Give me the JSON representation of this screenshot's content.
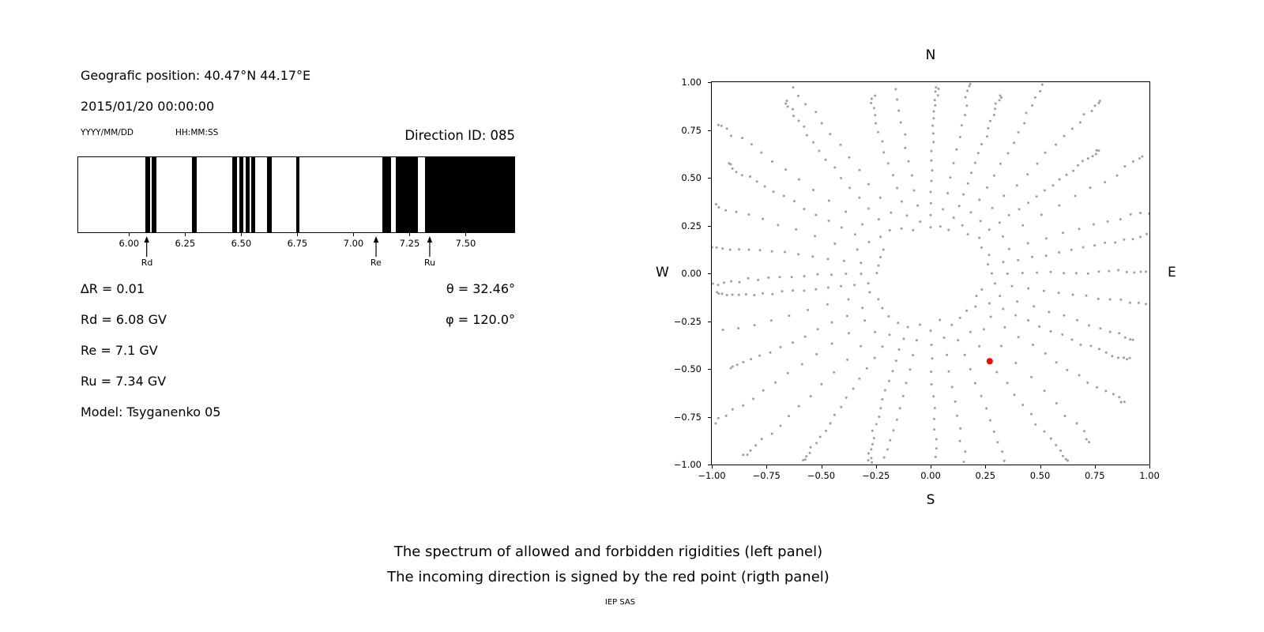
{
  "figure": {
    "background": "#ffffff",
    "caption_line1": "The spectrum of allowed and forbidden rigidities (left panel)",
    "caption_line2": "The incoming direction is signed by the red point (rigth panel)",
    "credit": "IEP SAS"
  },
  "left_panel": {
    "position": "Geografic position: 40.47°N 44.17°E",
    "datetime": "2015/01/20 00:00:00",
    "date_format_hint": "YYYY/MM/DD",
    "time_format_hint": "HH:MM:SS",
    "direction_id": "Direction ID: 085",
    "info_rows": [
      {
        "left": "∆R = 0.01",
        "right": "θ = 32.46°"
      },
      {
        "left": "Rd = 6.08 GV",
        "right": "φ = 120.0°"
      },
      {
        "left": "Re = 7.1 GV",
        "right": ""
      },
      {
        "left": "Ru = 7.34 GV",
        "right": ""
      },
      {
        "left": "Model: Tsyganenko 05",
        "right": ""
      }
    ]
  },
  "chart_data": [
    {
      "type": "bar",
      "name": "rigidity-spectrum",
      "title": "Direction ID: 085",
      "description": "Spectrum of allowed (white) and forbidden (black) rigidities in GV",
      "x_range": [
        5.77,
        7.72
      ],
      "x_ticks": [
        "6.00",
        "6.25",
        "6.50",
        "6.75",
        "7.00",
        "7.25",
        "7.50"
      ],
      "x_tick_values": [
        6.0,
        6.25,
        6.5,
        6.75,
        7.0,
        7.25,
        7.5
      ],
      "bar_color": "#000000",
      "forbidden_bands_gv": [
        [
          6.07,
          6.09
        ],
        [
          6.1,
          6.12
        ],
        [
          6.28,
          6.3
        ],
        [
          6.46,
          6.48
        ],
        [
          6.49,
          6.51
        ],
        [
          6.52,
          6.535
        ],
        [
          6.545,
          6.56
        ],
        [
          6.615,
          6.635
        ],
        [
          6.745,
          6.76
        ],
        [
          7.13,
          7.17
        ],
        [
          7.19,
          7.29
        ],
        [
          7.32,
          7.72
        ]
      ],
      "markers": [
        {
          "label": "Rd",
          "value": 6.08
        },
        {
          "label": "Re",
          "value": 7.1
        },
        {
          "label": "Ru",
          "value": 7.34
        }
      ],
      "values": {
        "delta_R_gv": 0.01,
        "Rd_gv": 6.08,
        "Re_gv": 7.1,
        "Ru_gv": 7.34,
        "theta_deg": 32.46,
        "phi_deg": 120.0,
        "model": "Tsyganenko 05",
        "direction_id": "085"
      }
    },
    {
      "type": "scatter",
      "name": "incoming-direction-map",
      "description": "Radial pattern of gray trajectory points; red point marks the incoming direction",
      "xlim": [
        -1,
        1
      ],
      "ylim": [
        -1,
        1
      ],
      "x_ticks": [
        "−1.00",
        "−0.75",
        "−0.50",
        "−0.25",
        "0.00",
        "0.25",
        "0.50",
        "0.75",
        "1.00"
      ],
      "x_tick_values": [
        -1.0,
        -0.75,
        -0.5,
        -0.25,
        0.0,
        0.25,
        0.5,
        0.75,
        1.0
      ],
      "y_ticks": [
        "1.00",
        "0.75",
        "0.50",
        "0.25",
        "0.00",
        "−0.25",
        "−0.50",
        "−0.75",
        "−1.00"
      ],
      "y_tick_values": [
        1.0,
        0.75,
        0.5,
        0.25,
        0.0,
        -0.25,
        -0.5,
        -0.75,
        -1.0
      ],
      "compass": {
        "top": "N",
        "bottom": "S",
        "left": "W",
        "right": "E"
      },
      "rays": {
        "count": 36,
        "inner_radius": 0.27,
        "outer_radius_min": 0.95,
        "outer_radius_max": 1.32,
        "points_min": 12,
        "points_max": 19,
        "tip_bunching": 1.6,
        "seed": 7
      },
      "point_color": "#9e9e9e",
      "point_radius_px": 1.5,
      "red_point": {
        "x": 0.27,
        "y": -0.46
      },
      "red_point_color": "#ff0000",
      "red_point_radius_px": 4,
      "grid": false,
      "legend": false
    }
  ]
}
